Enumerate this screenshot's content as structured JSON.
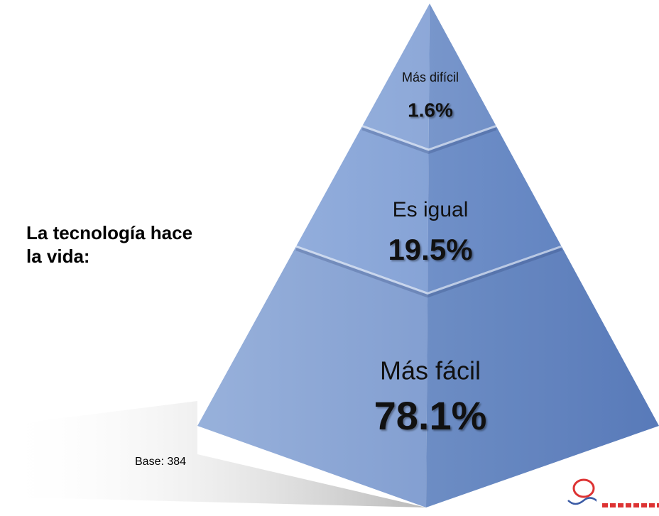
{
  "chart_data": {
    "type": "pyramid",
    "title": "La tecnología hace la vida:",
    "categories": [
      "Más difícil",
      "Es igual",
      "Más fácil"
    ],
    "values": [
      1.6,
      19.5,
      78.1
    ],
    "value_labels": [
      "1.6%",
      "19.5%",
      "78.1%"
    ],
    "note": "Base: 384",
    "color": "#7f9fd4"
  }
}
